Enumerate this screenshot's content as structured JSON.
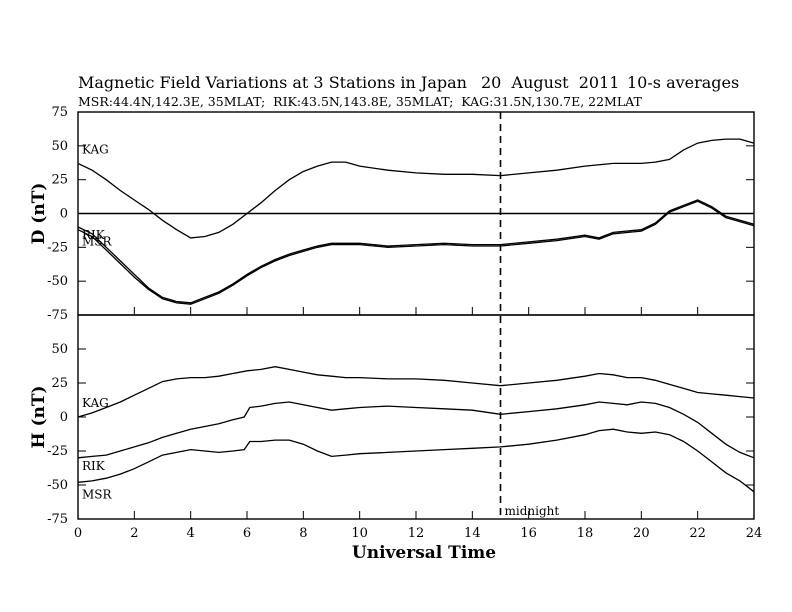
{
  "chart_data": {
    "type": "line",
    "title": "Magnetic Field Variations at 3 Stations in Japan",
    "date": "20  August  2011",
    "averaging": "10-s averages",
    "subtitle": "MSR:44.4N,142.3E, 35MLAT;  RIK:43.5N,143.8E, 35MLAT;  KAG:31.5N,130.7E, 22MLAT",
    "xlabel": "Universal Time",
    "xlim": [
      0,
      24
    ],
    "xticks": [
      0,
      2,
      4,
      6,
      8,
      10,
      12,
      14,
      16,
      18,
      20,
      22,
      24
    ],
    "vertical_marker": {
      "x": 15,
      "label": "midnight"
    },
    "panels": [
      {
        "ylabel": "D (nT)",
        "ylim": [
          -75,
          75
        ],
        "yticks": [
          75,
          50,
          25,
          0,
          -25,
          -50,
          -75
        ],
        "zero_line": true,
        "series": [
          {
            "name": "KAG",
            "x": [
              0,
              0.5,
              1,
              1.5,
              2,
              2.5,
              3,
              3.5,
              4,
              4.5,
              5,
              5.5,
              6,
              6.5,
              7,
              7.5,
              8,
              8.5,
              9,
              9.5,
              10,
              11,
              12,
              13,
              14,
              15,
              16,
              17,
              18,
              19,
              20,
              20.5,
              21,
              21.5,
              22,
              22.5,
              23,
              23.5,
              24
            ],
            "y": [
              37,
              32,
              25,
              17,
              10,
              3,
              -5,
              -12,
              -18,
              -17,
              -14,
              -8,
              0,
              8,
              17,
              25,
              31,
              35,
              38,
              38,
              35,
              32,
              30,
              29,
              29,
              28,
              30,
              32,
              35,
              37,
              37,
              38,
              40,
              47,
              52,
              54,
              55,
              55,
              52
            ]
          },
          {
            "name": "RIK",
            "x": [
              0,
              0.5,
              1,
              1.5,
              2,
              2.5,
              3,
              3.5,
              4,
              4.5,
              5,
              5.5,
              6,
              6.5,
              7,
              7.5,
              8,
              8.5,
              9,
              9.5,
              10,
              11,
              12,
              13,
              14,
              15,
              16,
              17,
              18,
              18.5,
              19,
              20,
              20.5,
              21,
              21.5,
              22,
              22.5,
              23,
              23.5,
              24
            ],
            "y": [
              -10,
              -15,
              -25,
              -35,
              -45,
              -55,
              -62,
              -65,
              -66,
              -62,
              -58,
              -52,
              -45,
              -39,
              -34,
              -30,
              -27,
              -24,
              -22,
              -22,
              -22,
              -24,
              -23,
              -22,
              -23,
              -23,
              -21,
              -19,
              -16,
              -18,
              -14,
              -12,
              -7,
              2,
              6,
              10,
              5,
              -2,
              -5,
              -8
            ]
          },
          {
            "name": "MSR",
            "x": [
              0,
              0.5,
              1,
              1.5,
              2,
              2.5,
              3,
              3.5,
              4,
              4.5,
              5,
              5.5,
              6,
              6.5,
              7,
              7.5,
              8,
              8.5,
              9,
              9.5,
              10,
              11,
              12,
              13,
              14,
              15,
              16,
              17,
              18,
              18.5,
              19,
              20,
              20.5,
              21,
              21.5,
              22,
              22.5,
              23,
              23.5,
              24
            ],
            "y": [
              -12,
              -17,
              -27,
              -37,
              -47,
              -56,
              -63,
              -66,
              -67,
              -63,
              -59,
              -53,
              -46,
              -40,
              -35,
              -31,
              -28,
              -25,
              -23,
              -23,
              -23,
              -25,
              -24,
              -23,
              -24,
              -24,
              -22,
              -20,
              -17,
              -19,
              -15,
              -13,
              -8,
              1,
              5,
              9,
              4,
              -3,
              -6,
              -9
            ]
          }
        ]
      },
      {
        "ylabel": "H (nT)",
        "ylim": [
          -75,
          75
        ],
        "yticks": [
          75,
          50,
          25,
          0,
          -25,
          -50,
          -75
        ],
        "zero_line": false,
        "series": [
          {
            "name": "KAG",
            "x": [
              0,
              0.5,
              1,
              1.5,
              2,
              2.5,
              3,
              3.5,
              4,
              4.5,
              5,
              5.5,
              6,
              6.5,
              7,
              7.5,
              8,
              8.5,
              9,
              9.5,
              10,
              11,
              12,
              13,
              14,
              15,
              16,
              17,
              18,
              18.5,
              19,
              19.5,
              20,
              20.5,
              21,
              21.5,
              22,
              22.5,
              23,
              23.5,
              24
            ],
            "y": [
              0,
              3,
              7,
              11,
              16,
              21,
              26,
              28,
              29,
              29,
              30,
              32,
              34,
              35,
              37,
              35,
              33,
              31,
              30,
              29,
              29,
              28,
              28,
              27,
              25,
              23,
              25,
              27,
              30,
              32,
              31,
              29,
              29,
              27,
              24,
              21,
              18,
              17,
              16,
              15,
              14
            ]
          },
          {
            "name": "RIK",
            "x": [
              0,
              0.5,
              1,
              1.5,
              2,
              2.5,
              3,
              3.5,
              4,
              4.5,
              5,
              5.5,
              5.9,
              6.1,
              6.5,
              7,
              7.5,
              8,
              8.5,
              9,
              9.5,
              10,
              11,
              12,
              13,
              14,
              15,
              16,
              17,
              18,
              18.5,
              19,
              19.5,
              20,
              20.5,
              21,
              21.5,
              22,
              22.5,
              23,
              23.5,
              24
            ],
            "y": [
              -30,
              -29,
              -28,
              -25,
              -22,
              -19,
              -15,
              -12,
              -9,
              -7,
              -5,
              -2,
              0,
              7,
              8,
              10,
              11,
              9,
              7,
              5,
              6,
              7,
              8,
              7,
              6,
              5,
              2,
              4,
              6,
              9,
              11,
              10,
              9,
              11,
              10,
              7,
              2,
              -4,
              -12,
              -20,
              -26,
              -30
            ]
          },
          {
            "name": "MSR",
            "x": [
              0,
              0.5,
              1,
              1.5,
              2,
              2.5,
              3,
              3.5,
              4,
              4.5,
              5,
              5.5,
              5.9,
              6.1,
              6.5,
              7,
              7.5,
              8,
              8.5,
              9,
              9.5,
              10,
              11,
              12,
              13,
              14,
              15,
              16,
              17,
              18,
              18.5,
              19,
              19.5,
              20,
              20.5,
              21,
              21.5,
              22,
              22.5,
              23,
              23.5,
              24
            ],
            "y": [
              -48,
              -47,
              -45,
              -42,
              -38,
              -33,
              -28,
              -26,
              -24,
              -25,
              -26,
              -25,
              -24,
              -18,
              -18,
              -17,
              -17,
              -20,
              -25,
              -29,
              -28,
              -27,
              -26,
              -25,
              -24,
              -23,
              -22,
              -20,
              -17,
              -13,
              -10,
              -9,
              -11,
              -12,
              -11,
              -13,
              -18,
              -25,
              -33,
              -41,
              -47,
              -55
            ]
          }
        ]
      }
    ]
  }
}
